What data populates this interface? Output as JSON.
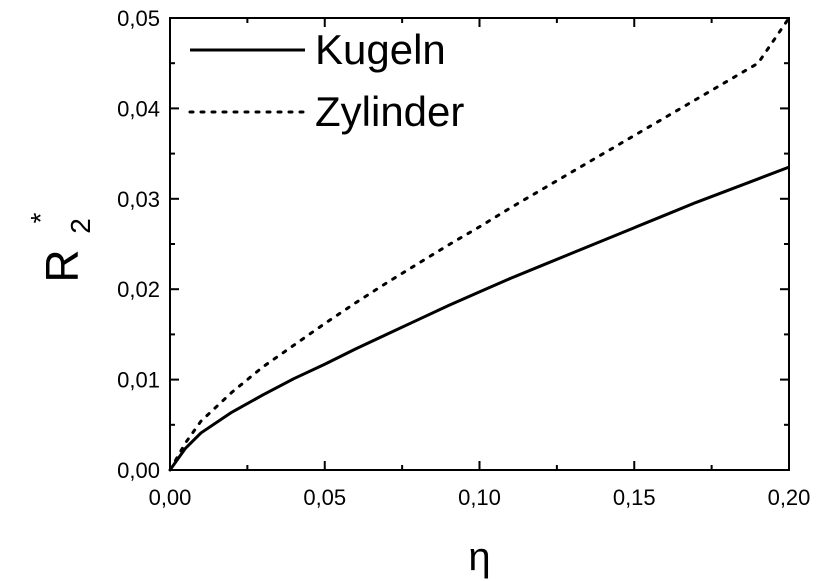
{
  "chart_data": {
    "type": "line",
    "title": "",
    "xlabel": "η",
    "ylabel": "R",
    "ylabel_sub": "2",
    "ylabel_sup": "*",
    "xlim": [
      0,
      0.2
    ],
    "ylim": [
      0,
      0.05
    ],
    "x_ticks": [
      0,
      0.05,
      0.1,
      0.15,
      0.2
    ],
    "x_tick_labels": [
      "0,00",
      "0,05",
      "0,10",
      "0,15",
      "0,20"
    ],
    "y_ticks": [
      0,
      0.01,
      0.02,
      0.03,
      0.04,
      0.05
    ],
    "y_tick_labels": [
      "0,00",
      "0,01",
      "0,02",
      "0,03",
      "0,04",
      "0,05"
    ],
    "grid": false,
    "legend_position": "top-left",
    "series": [
      {
        "name": "Kugeln",
        "style": "solid",
        "color": "#000000",
        "x": [
          0,
          0.005,
          0.01,
          0.02,
          0.03,
          0.04,
          0.05,
          0.06,
          0.07,
          0.08,
          0.09,
          0.1,
          0.11,
          0.12,
          0.13,
          0.14,
          0.15,
          0.16,
          0.17,
          0.18,
          0.19,
          0.2
        ],
        "y": [
          0,
          0.0024,
          0.0041,
          0.0064,
          0.0083,
          0.0101,
          0.0117,
          0.0134,
          0.015,
          0.0166,
          0.0182,
          0.0197,
          0.0212,
          0.0226,
          0.024,
          0.0254,
          0.0268,
          0.0282,
          0.0296,
          0.0309,
          0.0322,
          0.0335
        ]
      },
      {
        "name": "Zylinder",
        "style": "dotted",
        "color": "#000000",
        "x": [
          0,
          0.005,
          0.01,
          0.02,
          0.03,
          0.04,
          0.05,
          0.06,
          0.07,
          0.08,
          0.09,
          0.1,
          0.11,
          0.12,
          0.13,
          0.14,
          0.15,
          0.16,
          0.17,
          0.18,
          0.19,
          0.2
        ],
        "y": [
          0,
          0.003,
          0.0054,
          0.0086,
          0.0114,
          0.0138,
          0.0162,
          0.0185,
          0.0207,
          0.0228,
          0.0249,
          0.0269,
          0.029,
          0.031,
          0.033,
          0.035,
          0.037,
          0.039,
          0.041,
          0.043,
          0.045,
          0.05
        ]
      }
    ]
  }
}
